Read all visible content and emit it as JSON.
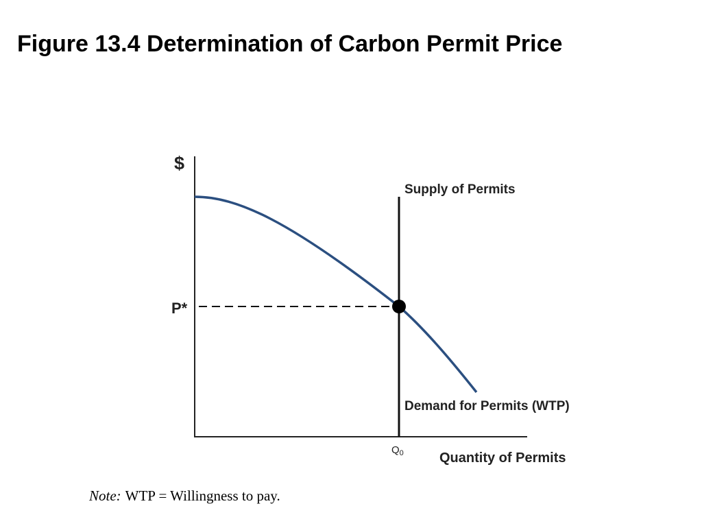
{
  "title": "Figure 13.4 Determination of Carbon Permit Price",
  "diagram": {
    "y_axis_label": "$",
    "price_label": "P*",
    "supply_label": "Supply of Permits",
    "demand_label": "Demand for Permits (WTP)",
    "quantity_label": "Q",
    "quantity_subscript": "0",
    "x_axis_label": "Quantity of Permits"
  },
  "note": {
    "prefix": "Note:",
    "text": "WTP = Willingness to pay."
  }
}
